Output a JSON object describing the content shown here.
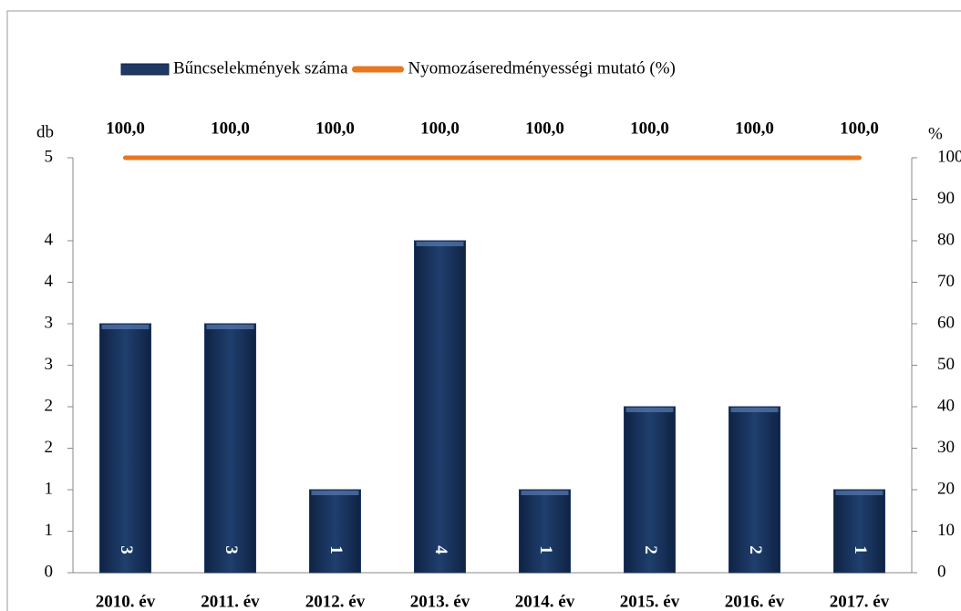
{
  "chart_data": {
    "type": "bar",
    "y_label": "db",
    "y2_label": "%",
    "categories": [
      "2010. év",
      "2011. év",
      "2012. év",
      "2013. év",
      "2014. év",
      "2015. év",
      "2016. év",
      "2017. év"
    ],
    "series": [
      {
        "name": "Bűncselekmények száma",
        "type": "bar",
        "color": "#1f3864",
        "axis": "y",
        "values": [
          3,
          3,
          1,
          4,
          1,
          2,
          2,
          1
        ]
      },
      {
        "name": "Nyomozáseredményességi mutató (%)",
        "type": "line",
        "color": "#e87722",
        "axis": "y2",
        "values": [
          100,
          100,
          100,
          100,
          100,
          100,
          100,
          100
        ],
        "value_labels": [
          "100,0",
          "100,0",
          "100,0",
          "100,0",
          "100,0",
          "100,0",
          "100,0",
          "100,0"
        ]
      }
    ],
    "ylim": [
      0,
      5
    ],
    "yticks": [
      0,
      {
        "value": 0.5,
        "label": "1"
      },
      1,
      {
        "value": 1.5,
        "label": "2"
      },
      2,
      {
        "value": 2.5,
        "label": "3"
      },
      3,
      {
        "value": 3.5,
        "label": "4"
      },
      4,
      5
    ],
    "y2lim": [
      0,
      100
    ],
    "y2ticks": [
      0,
      10,
      20,
      30,
      40,
      50,
      60,
      70,
      80,
      90,
      100
    ],
    "legend": "top"
  }
}
